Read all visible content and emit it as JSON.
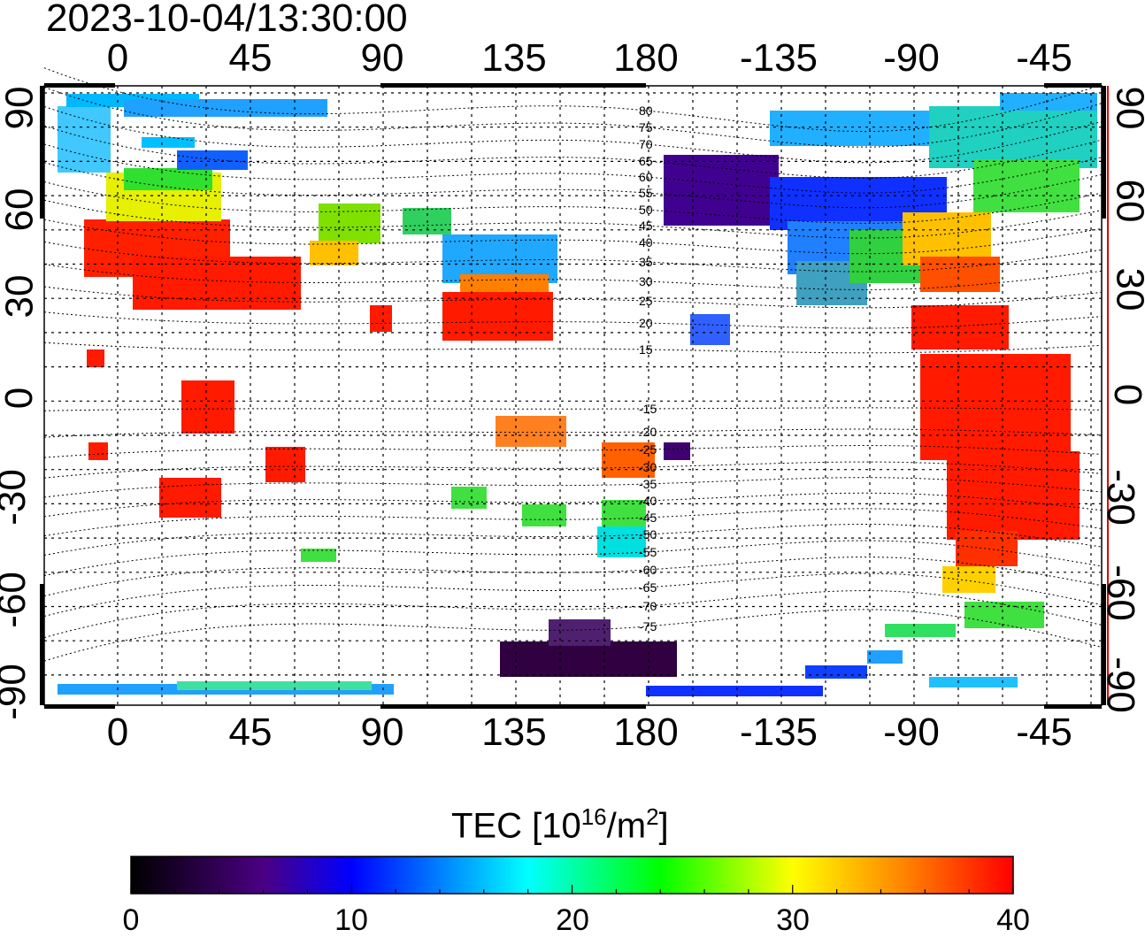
{
  "title": "2023-10-04/13:30:00",
  "map": {
    "x_ticks": [
      "0",
      "45",
      "90",
      "135",
      "180",
      "-135",
      "-90",
      "-45"
    ],
    "y_ticks": [
      "90",
      "60",
      "30",
      "0",
      "-30",
      "-60",
      "-90"
    ],
    "mlat_labels": [
      "80",
      "75",
      "70",
      "65",
      "60",
      "55",
      "50",
      "45",
      "40",
      "35",
      "30",
      "25",
      "20",
      "15",
      "-15",
      "-20",
      "-25",
      "-30",
      "-35",
      "-40",
      "-45",
      "-50",
      "-55",
      "-60",
      "-65",
      "-70",
      "-75"
    ]
  },
  "colorbar": {
    "label_prefix": "TEC  [10",
    "label_sup1": "16",
    "label_mid": "/m",
    "label_sup2": "2",
    "label_suffix": "]",
    "ticks": [
      "0",
      "10",
      "20",
      "30",
      "40"
    ],
    "min": 0,
    "max": 40,
    "colors": [
      "#000000",
      "#4b0082",
      "#0000ff",
      "#00ffff",
      "#00ff00",
      "#ffff00",
      "#ff0000"
    ]
  }
}
